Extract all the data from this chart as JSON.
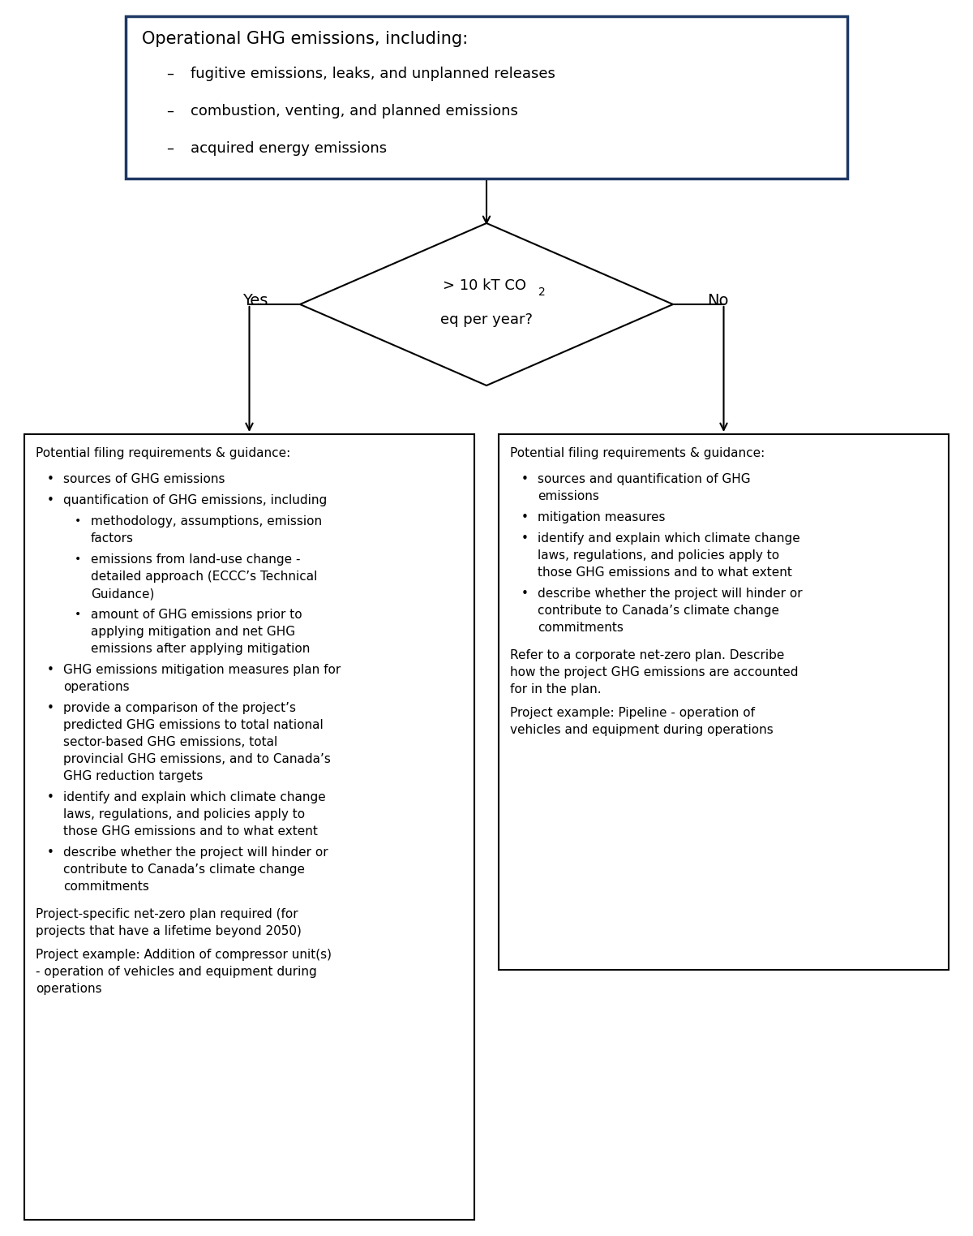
{
  "bg_color": "#ffffff",
  "border_color": "#1f3864",
  "arrow_color": "#000000",
  "top_box": {
    "title": "Operational GHG emissions, including:",
    "bullets": [
      "fugitive emissions, leaks, and unplanned releases",
      "combustion, venting, and planned emissions",
      "acquired energy emissions"
    ]
  },
  "diamond_label_line1": "> 10 kT CO",
  "diamond_label_co2_sub": "2",
  "diamond_label_line2": "eq per year?",
  "yes_label": "Yes",
  "no_label": "No",
  "left_box": {
    "header": "Potential filing requirements & guidance:",
    "items": [
      {
        "level": 1,
        "text": "sources of GHG emissions"
      },
      {
        "level": 1,
        "text": "quantification of GHG emissions, including"
      },
      {
        "level": 2,
        "text": "methodology, assumptions, emission\nfactors"
      },
      {
        "level": 2,
        "text": "emissions from land-use change -\ndetailed approach (ECCC’s Technical\nGuidance)"
      },
      {
        "level": 2,
        "text": "amount of GHG emissions prior to\napplying mitigation and net GHG\nemissions after applying mitigation"
      },
      {
        "level": 1,
        "text": "GHG emissions mitigation measures plan for\noperations"
      },
      {
        "level": 1,
        "text": "provide a comparison of the project’s\npredicted GHG emissions to total national\nsector-based GHG emissions, total\nprovincial GHG emissions, and to Canada’s\nGHG reduction targets"
      },
      {
        "level": 1,
        "text": "identify and explain which climate change\nlaws, regulations, and policies apply to\nthose GHG emissions and to what extent"
      },
      {
        "level": 1,
        "text": "describe whether the project will hinder or\ncontribute to Canada’s climate change\ncommitments"
      }
    ],
    "footer_items": [
      "Project-specific net-zero plan required (for\nprojects that have a lifetime beyond 2050)",
      "Project example: Addition of compressor unit(s)\n- operation of vehicles and equipment during\noperations"
    ]
  },
  "right_box": {
    "header": "Potential filing requirements & guidance:",
    "items": [
      {
        "level": 1,
        "text": "sources and quantification of GHG\nemissions"
      },
      {
        "level": 1,
        "text": "mitigation measures"
      },
      {
        "level": 1,
        "text": "identify and explain which climate change\nlaws, regulations, and policies apply to\nthose GHG emissions and to what extent"
      },
      {
        "level": 1,
        "text": "describe whether the project will hinder or\ncontribute to Canada’s climate change\ncommitments"
      }
    ],
    "footer_items": [
      "Refer to a corporate net-zero plan. Describe\nhow the project GHG emissions are accounted\nfor in the plan.",
      "Project example: Pipeline - operation of\nvehicles and equipment during operations"
    ]
  }
}
